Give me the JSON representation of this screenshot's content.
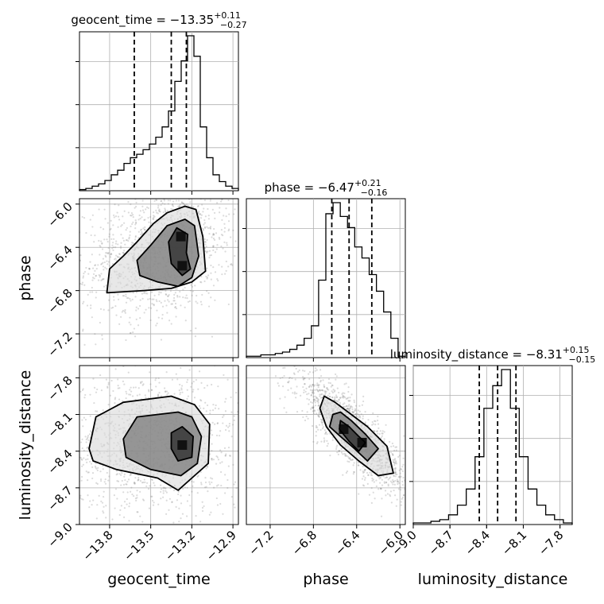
{
  "chart_data": {
    "type": "corner",
    "parameters": [
      "geocent_time",
      "phase",
      "luminosity_distance"
    ],
    "grid": true,
    "colors": {
      "hist": "#000000",
      "grid": "#b0b0b0",
      "points": "#7f7f7f",
      "contour": "#000000"
    },
    "histograms": [
      {
        "parameter": "geocent_time",
        "title_name": "geocent_time",
        "title_value": "−13.35",
        "title_plus": "+0.11",
        "title_minus": "−0.27",
        "range": [
          -14.02,
          -12.86
        ],
        "bin_counts": [
          1,
          2,
          4,
          6,
          9,
          14,
          18,
          24,
          29,
          32,
          36,
          41,
          47,
          56,
          70,
          96,
          114,
          136,
          118,
          56,
          29,
          14,
          8,
          4,
          2
        ],
        "quantiles": [
          -13.62,
          -13.35,
          -13.24
        ]
      },
      {
        "parameter": "phase",
        "title_name": "phase",
        "title_value": "−6.47",
        "title_plus": "+0.21",
        "title_minus": "−0.16",
        "range": [
          -7.42,
          -5.95
        ],
        "bin_counts": [
          1,
          1,
          2,
          2,
          3,
          4,
          6,
          9,
          14,
          23,
          56,
          104,
          112,
          102,
          94,
          80,
          72,
          60,
          48,
          33,
          14,
          1
        ],
        "quantiles": [
          -6.63,
          -6.47,
          -6.26
        ]
      },
      {
        "parameter": "luminosity_distance",
        "title_name": "luminosity_distance",
        "title_value": "−8.31",
        "title_plus": "+0.15",
        "title_minus": "−0.15",
        "range": [
          -9.0,
          -7.7
        ],
        "bin_counts": [
          1,
          1,
          2,
          3,
          6,
          12,
          22,
          42,
          72,
          86,
          96,
          72,
          42,
          22,
          12,
          6,
          3,
          1
        ],
        "quantiles": [
          -8.46,
          -8.31,
          -8.16
        ]
      }
    ],
    "axes": {
      "geocent_time": {
        "ticks": [
          -13.8,
          -13.5,
          -13.2,
          -12.9
        ],
        "tick_labels": [
          "−13.8",
          "−13.5",
          "−13.2",
          "−12.9"
        ]
      },
      "phase": {
        "ticks": [
          -7.2,
          -6.8,
          -6.4,
          -6.0
        ],
        "tick_labels": [
          "−7.2",
          "−6.8",
          "−6.4",
          "−6.0"
        ]
      },
      "luminosity_distance": {
        "ticks": [
          -9.0,
          -8.7,
          -8.4,
          -8.1,
          -7.8
        ],
        "tick_labels": [
          "−9.0",
          "−8.7",
          "−8.4",
          "−8.1",
          "−7.8"
        ],
        "y_ticks": [
          -7.8,
          -8.1,
          -8.4,
          -8.7,
          -9.0
        ],
        "y_tick_labels": [
          "−7.8",
          "−8.1",
          "−8.4",
          "−8.7",
          "−9.0"
        ]
      }
    },
    "pairs": [
      {
        "x": "geocent_time",
        "y": "phase",
        "contours": [
          [
            [
              -13.31,
              -6.22
            ],
            [
              -13.23,
              -6.28
            ],
            [
              -13.24,
              -6.45
            ],
            [
              -13.21,
              -6.6
            ],
            [
              -13.27,
              -6.66
            ],
            [
              -13.35,
              -6.55
            ],
            [
              -13.37,
              -6.35
            ]
          ],
          [
            [
              -13.6,
              -6.52
            ],
            [
              -13.5,
              -6.38
            ],
            [
              -13.38,
              -6.2
            ],
            [
              -13.25,
              -6.14
            ],
            [
              -13.18,
              -6.2
            ],
            [
              -13.15,
              -6.48
            ],
            [
              -13.2,
              -6.68
            ],
            [
              -13.3,
              -6.76
            ],
            [
              -13.45,
              -6.72
            ],
            [
              -13.58,
              -6.66
            ]
          ],
          [
            [
              -13.82,
              -6.82
            ],
            [
              -13.8,
              -6.6
            ],
            [
              -13.7,
              -6.48
            ],
            [
              -13.6,
              -6.35
            ],
            [
              -13.48,
              -6.18
            ],
            [
              -13.38,
              -6.08
            ],
            [
              -13.25,
              -6.02
            ],
            [
              -13.17,
              -6.05
            ],
            [
              -13.12,
              -6.3
            ],
            [
              -13.1,
              -6.62
            ],
            [
              -13.2,
              -6.72
            ],
            [
              -13.35,
              -6.78
            ],
            [
              -13.55,
              -6.8
            ]
          ]
        ],
        "peaks": [
          [
            -13.27,
            -6.57
          ],
          [
            -13.28,
            -6.3
          ]
        ]
      },
      {
        "x": "geocent_time",
        "y": "luminosity_distance",
        "contours": [
          [
            [
              -13.35,
              -8.25
            ],
            [
              -13.27,
              -8.2
            ],
            [
              -13.19,
              -8.28
            ],
            [
              -13.2,
              -8.45
            ],
            [
              -13.3,
              -8.48
            ],
            [
              -13.35,
              -8.38
            ]
          ],
          [
            [
              -13.7,
              -8.3
            ],
            [
              -13.6,
              -8.12
            ],
            [
              -13.3,
              -8.08
            ],
            [
              -13.2,
              -8.12
            ],
            [
              -13.13,
              -8.28
            ],
            [
              -13.16,
              -8.5
            ],
            [
              -13.28,
              -8.6
            ],
            [
              -13.5,
              -8.55
            ],
            [
              -13.68,
              -8.45
            ]
          ],
          [
            [
              -13.95,
              -8.38
            ],
            [
              -13.9,
              -8.12
            ],
            [
              -13.7,
              -8.0
            ],
            [
              -13.35,
              -7.95
            ],
            [
              -13.18,
              -8.02
            ],
            [
              -13.07,
              -8.18
            ],
            [
              -13.08,
              -8.5
            ],
            [
              -13.2,
              -8.62
            ],
            [
              -13.3,
              -8.72
            ],
            [
              -13.45,
              -8.62
            ],
            [
              -13.75,
              -8.55
            ],
            [
              -13.92,
              -8.48
            ]
          ]
        ],
        "peaks": [
          [
            -13.27,
            -8.35
          ]
        ]
      },
      {
        "x": "phase",
        "y": "luminosity_distance",
        "contours": [
          [
            [
              -6.55,
              -8.15
            ],
            [
              -6.47,
              -8.2
            ],
            [
              -6.38,
              -8.28
            ],
            [
              -6.32,
              -8.33
            ],
            [
              -6.38,
              -8.4
            ],
            [
              -6.47,
              -8.32
            ],
            [
              -6.56,
              -8.22
            ]
          ],
          [
            [
              -6.62,
              -8.1
            ],
            [
              -6.55,
              -8.08
            ],
            [
              -6.45,
              -8.15
            ],
            [
              -6.32,
              -8.26
            ],
            [
              -6.2,
              -8.38
            ],
            [
              -6.3,
              -8.48
            ],
            [
              -6.42,
              -8.38
            ],
            [
              -6.55,
              -8.28
            ],
            [
              -6.65,
              -8.2
            ]
          ],
          [
            [
              -6.7,
              -7.95
            ],
            [
              -6.6,
              -8.0
            ],
            [
              -6.45,
              -8.1
            ],
            [
              -6.3,
              -8.2
            ],
            [
              -6.12,
              -8.36
            ],
            [
              -6.06,
              -8.58
            ],
            [
              -6.2,
              -8.6
            ],
            [
              -6.38,
              -8.48
            ],
            [
              -6.55,
              -8.35
            ],
            [
              -6.68,
              -8.2
            ],
            [
              -6.74,
              -8.05
            ]
          ]
        ],
        "peaks": [
          [
            -6.52,
            -8.22
          ],
          [
            -6.35,
            -8.33
          ]
        ]
      }
    ]
  }
}
